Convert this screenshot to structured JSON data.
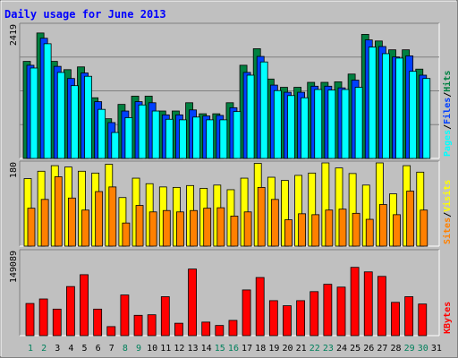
{
  "chart_data": [
    {
      "type": "bar",
      "title": "Daily usage for June 2013",
      "categories": [
        "1",
        "2",
        "3",
        "4",
        "5",
        "6",
        "7",
        "8",
        "9",
        "10",
        "11",
        "12",
        "13",
        "14",
        "15",
        "16",
        "17",
        "18",
        "19",
        "20",
        "21",
        "22",
        "23",
        "24",
        "25",
        "26",
        "27",
        "28",
        "29",
        "30",
        "31"
      ],
      "weekend_days": [
        "1",
        "2",
        "8",
        "9",
        "15",
        "16",
        "22",
        "23",
        "29",
        "30"
      ],
      "ymax_label": "2419",
      "ylabel": [
        "Pages",
        "Files",
        "Hits"
      ],
      "ylabel_separator": "/",
      "series": [
        {
          "name": "Hits",
          "values": [
            1760,
            2275,
            1760,
            1610,
            1660,
            1100,
            720,
            980,
            1130,
            1130,
            860,
            860,
            1010,
            810,
            810,
            1010,
            1690,
            1990,
            1440,
            1290,
            1290,
            1380,
            1380,
            1390,
            1530,
            2250,
            2130,
            1970,
            1970,
            1620,
            0
          ]
        },
        {
          "name": "Files",
          "values": [
            1690,
            2180,
            1670,
            1450,
            1550,
            1030,
            650,
            860,
            1030,
            1010,
            790,
            790,
            880,
            770,
            780,
            920,
            1560,
            1850,
            1330,
            1200,
            1200,
            1310,
            1310,
            1280,
            1420,
            2150,
            2030,
            1840,
            1860,
            1510,
            0
          ]
        },
        {
          "name": "Pages",
          "values": [
            1640,
            2080,
            1560,
            1320,
            1490,
            890,
            470,
            740,
            970,
            860,
            710,
            700,
            750,
            700,
            700,
            850,
            1510,
            1750,
            1230,
            1140,
            1100,
            1250,
            1240,
            1250,
            1290,
            2020,
            1900,
            1820,
            1580,
            1450,
            0
          ]
        }
      ],
      "colors": {
        "Hits": "#008040",
        "Files": "#0040ff",
        "Pages": "#00ffff"
      }
    },
    {
      "type": "bar",
      "categories": [
        "1",
        "2",
        "3",
        "4",
        "5",
        "6",
        "7",
        "8",
        "9",
        "10",
        "11",
        "12",
        "13",
        "14",
        "15",
        "16",
        "17",
        "18",
        "19",
        "20",
        "21",
        "22",
        "23",
        "24",
        "25",
        "26",
        "27",
        "28",
        "29",
        "30",
        "31"
      ],
      "ymax_label": "180",
      "ylabel": [
        "Sites",
        "Visits"
      ],
      "ylabel_separator": "/",
      "series": [
        {
          "name": "Visits",
          "values": [
            146,
            162,
            174,
            171,
            162,
            158,
            177,
            105,
            147,
            135,
            128,
            127,
            131,
            125,
            132,
            122,
            147,
            179,
            149,
            142,
            153,
            158,
            180,
            169,
            157,
            132,
            180,
            113,
            174,
            160,
            0
          ]
        },
        {
          "name": "Sites",
          "values": [
            82,
            101,
            150,
            104,
            78,
            118,
            128,
            50,
            88,
            74,
            77,
            74,
            77,
            82,
            83,
            65,
            74,
            127,
            101,
            57,
            70,
            68,
            78,
            80,
            71,
            58,
            90,
            68,
            119,
            78,
            0
          ]
        }
      ],
      "colors": {
        "Visits": "#ffff00",
        "Sites": "#ff8000"
      }
    },
    {
      "type": "bar",
      "categories": [
        "1",
        "2",
        "3",
        "4",
        "5",
        "6",
        "7",
        "8",
        "9",
        "10",
        "11",
        "12",
        "13",
        "14",
        "15",
        "16",
        "17",
        "18",
        "19",
        "20",
        "21",
        "22",
        "23",
        "24",
        "25",
        "26",
        "27",
        "28",
        "29",
        "30",
        "31"
      ],
      "ymax_label": "149089",
      "ylabel": [
        "KBytes"
      ],
      "series": [
        {
          "name": "KBytes",
          "values": [
            57000,
            65000,
            47000,
            87000,
            108000,
            47000,
            16000,
            72000,
            36000,
            37000,
            69000,
            22000,
            118000,
            24000,
            18000,
            27000,
            81000,
            103000,
            62000,
            53000,
            62000,
            78000,
            91000,
            86000,
            121000,
            113000,
            105000,
            59000,
            69000,
            56000,
            0
          ]
        }
      ],
      "colors": {
        "KBytes": "#ff0000"
      }
    }
  ],
  "colors": {
    "background": "#c0c0c0",
    "title": "#0000ff",
    "weekend_label": "#00805c",
    "weekday_label": "#000000"
  }
}
